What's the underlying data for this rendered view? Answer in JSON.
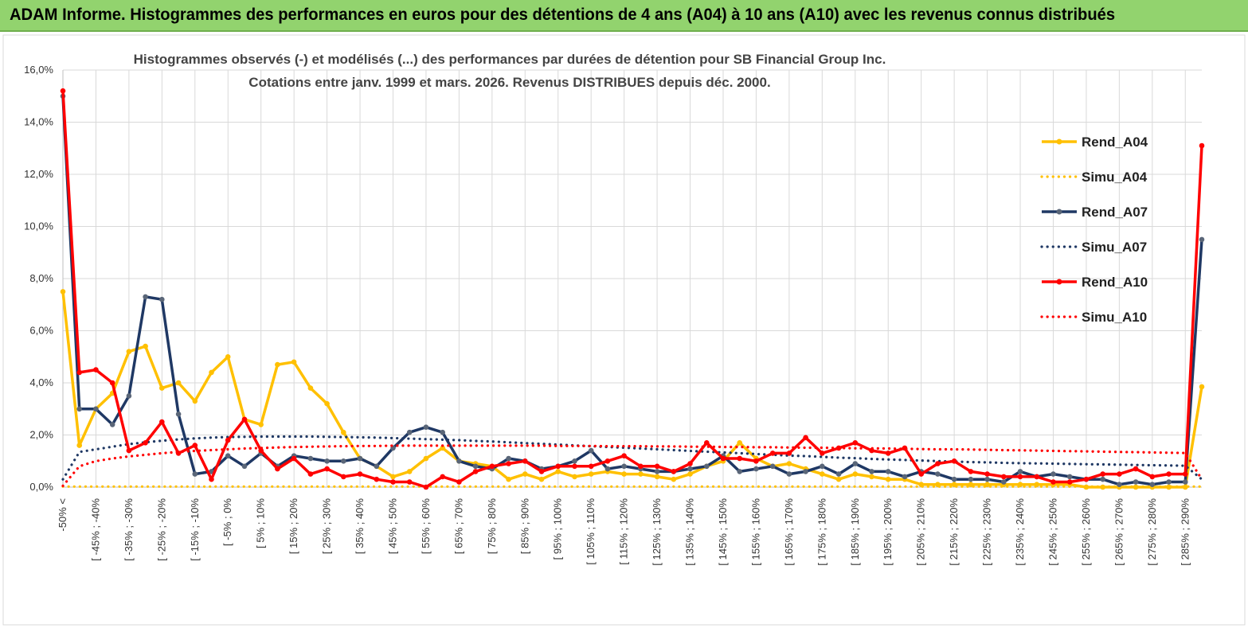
{
  "banner": {
    "title": "ADAM Informe. Histogrammes des performances en euros pour des détentions de 4 ans (A04) à 10 ans (A10) avec les revenus connus distribués"
  },
  "colors": {
    "A04": "#ffc000",
    "A07": "#1f3864",
    "A10": "#ff0000",
    "marker07": "#5a6678",
    "grid": "#d9d9d9",
    "banner": "#92d36e"
  },
  "chart_data": {
    "type": "line",
    "title_lines": [
      "Histogrammes observés (-) et modélisés (...)  des performances par durées de détention pour SB Financial Group Inc.",
      "Cotations entre janv. 1999 et mars. 2026. Revenus DISTRIBUES depuis déc. 2000."
    ],
    "ylim": [
      0,
      16
    ],
    "y_ticks": [
      "0,0%",
      "2,0%",
      "4,0%",
      "6,0%",
      "8,0%",
      "10,0%",
      "12,0%",
      "14,0%",
      "16,0%"
    ],
    "x_tick_labels": [
      "-50% <",
      "[ -45% ; -40%",
      "[ -35% ; -30%",
      "[ -25% ; -20%",
      "[ -15% ; -10%",
      "[ -5% ; 0%",
      "[ 5% ; 10%",
      "[ 15% ; 20%",
      "[ 25% ; 30%",
      "[ 35% ; 40%",
      "[ 45% ; 50%",
      "[ 55% ; 60%",
      "[ 65% ; 70%",
      "[ 75% ; 80%",
      "[ 85% ; 90%",
      "[ 95% ; 100%",
      "[ 105% ; 110%",
      "[ 115% ; 120%",
      "[ 125% ; 130%",
      "[ 135% ; 140%",
      "[ 145% ; 150%",
      "[ 155% ; 160%",
      "[ 165% ; 170%",
      "[ 175% ; 180%",
      "[ 185% ; 190%",
      "[ 195% ; 200%",
      "[ 205% ; 210%",
      "[ 215% ; 220%",
      "[ 225% ; 230%",
      "[ 235% ; 240%",
      "[ 245% ; 250%",
      "[ 255% ; 260%",
      "[ 265% ; 270%",
      "[ 275% ; 280%",
      "[ 285% ; 290%"
    ],
    "x_tick_positions": [
      0,
      2,
      4,
      6,
      8,
      10,
      12,
      14,
      16,
      18,
      20,
      22,
      24,
      26,
      28,
      30,
      32,
      34,
      36,
      38,
      40,
      42,
      44,
      46,
      48,
      50,
      52,
      54,
      56,
      58,
      60,
      62,
      64,
      66,
      68
    ],
    "category_count": 70,
    "series": [
      {
        "name": "Rend_A04",
        "style": "solid",
        "color_key": "A04",
        "values": [
          7.5,
          1.6,
          3.0,
          3.6,
          5.2,
          5.4,
          3.8,
          4.0,
          3.3,
          4.4,
          5.0,
          2.6,
          2.4,
          4.7,
          4.8,
          3.8,
          3.2,
          2.1,
          1.1,
          0.8,
          0.4,
          0.6,
          1.1,
          1.5,
          1.0,
          0.9,
          0.8,
          0.3,
          0.5,
          0.3,
          0.6,
          0.4,
          0.5,
          0.6,
          0.5,
          0.5,
          0.4,
          0.3,
          0.5,
          0.8,
          1.0,
          1.7,
          1.1,
          0.8,
          0.9,
          0.7,
          0.5,
          0.3,
          0.5,
          0.4,
          0.3,
          0.3,
          0.1,
          0.1,
          0.1,
          0.1,
          0.1,
          0.1,
          0.1,
          0.1,
          0.1,
          0.1,
          0.0,
          0.0,
          0.0,
          0.0,
          0.0,
          0.0,
          0.0,
          3.85
        ]
      },
      {
        "name": "Simu_A04",
        "style": "dotted",
        "color_key": "A04",
        "values": [
          0.02,
          0.02,
          0.02,
          0.02,
          0.02,
          0.02,
          0.02,
          0.02,
          0.02,
          0.02,
          0.02,
          0.02,
          0.02,
          0.02,
          0.02,
          0.02,
          0.02,
          0.02,
          0.02,
          0.02,
          0.02,
          0.02,
          0.02,
          0.02,
          0.02,
          0.02,
          0.02,
          0.02,
          0.02,
          0.02,
          0.02,
          0.02,
          0.02,
          0.02,
          0.02,
          0.02,
          0.02,
          0.02,
          0.02,
          0.02,
          0.02,
          0.02,
          0.02,
          0.02,
          0.02,
          0.02,
          0.02,
          0.02,
          0.02,
          0.02,
          0.02,
          0.02,
          0.02,
          0.02,
          0.02,
          0.02,
          0.02,
          0.02,
          0.02,
          0.02,
          0.02,
          0.02,
          0.02,
          0.02,
          0.02,
          0.02,
          0.02,
          0.02,
          0.02,
          0.02
        ]
      },
      {
        "name": "Rend_A07",
        "style": "solid",
        "color_key": "A07",
        "values": [
          15.0,
          3.0,
          3.0,
          2.4,
          3.5,
          7.3,
          7.2,
          2.8,
          0.5,
          0.6,
          1.2,
          0.8,
          1.3,
          0.8,
          1.2,
          1.1,
          1.0,
          1.0,
          1.1,
          0.8,
          1.5,
          2.1,
          2.3,
          2.1,
          1.0,
          0.8,
          0.7,
          1.1,
          1.0,
          0.7,
          0.8,
          1.0,
          1.4,
          0.7,
          0.8,
          0.7,
          0.6,
          0.6,
          0.7,
          0.8,
          1.2,
          0.6,
          0.7,
          0.8,
          0.5,
          0.6,
          0.8,
          0.5,
          0.9,
          0.6,
          0.6,
          0.4,
          0.6,
          0.5,
          0.3,
          0.3,
          0.3,
          0.2,
          0.6,
          0.4,
          0.5,
          0.4,
          0.3,
          0.3,
          0.1,
          0.2,
          0.1,
          0.2,
          0.2,
          9.5
        ]
      },
      {
        "name": "Simu_A07",
        "style": "dotted",
        "color_key": "A07",
        "values": [
          0.3,
          1.35,
          1.45,
          1.55,
          1.65,
          1.72,
          1.78,
          1.83,
          1.87,
          1.9,
          1.92,
          1.93,
          1.94,
          1.94,
          1.94,
          1.94,
          1.93,
          1.92,
          1.91,
          1.9,
          1.88,
          1.86,
          1.84,
          1.82,
          1.8,
          1.77,
          1.75,
          1.72,
          1.69,
          1.66,
          1.63,
          1.6,
          1.57,
          1.54,
          1.51,
          1.48,
          1.45,
          1.42,
          1.39,
          1.36,
          1.33,
          1.3,
          1.27,
          1.24,
          1.21,
          1.19,
          1.16,
          1.13,
          1.11,
          1.08,
          1.06,
          1.04,
          1.02,
          1.0,
          0.98,
          0.96,
          0.95,
          0.93,
          0.92,
          0.91,
          0.9,
          0.89,
          0.88,
          0.87,
          0.86,
          0.85,
          0.84,
          0.83,
          0.82,
          0.3
        ]
      },
      {
        "name": "Rend_A10",
        "style": "solid",
        "color_key": "A10",
        "values": [
          15.2,
          4.4,
          4.5,
          4.0,
          1.4,
          1.7,
          2.5,
          1.3,
          1.6,
          0.3,
          1.8,
          2.6,
          1.4,
          0.7,
          1.1,
          0.5,
          0.7,
          0.4,
          0.5,
          0.3,
          0.2,
          0.2,
          0.0,
          0.4,
          0.2,
          0.6,
          0.8,
          0.9,
          1.0,
          0.6,
          0.8,
          0.8,
          0.8,
          1.0,
          1.2,
          0.8,
          0.8,
          0.6,
          0.9,
          1.7,
          1.1,
          1.1,
          1.0,
          1.3,
          1.3,
          1.9,
          1.3,
          1.5,
          1.7,
          1.4,
          1.3,
          1.5,
          0.5,
          0.9,
          1.0,
          0.6,
          0.5,
          0.4,
          0.4,
          0.4,
          0.2,
          0.2,
          0.3,
          0.5,
          0.5,
          0.7,
          0.4,
          0.5,
          0.5,
          13.1
        ]
      },
      {
        "name": "Simu_A10",
        "style": "dotted",
        "color_key": "A10",
        "values": [
          0.05,
          0.8,
          1.0,
          1.1,
          1.18,
          1.24,
          1.3,
          1.35,
          1.39,
          1.42,
          1.45,
          1.48,
          1.5,
          1.52,
          1.54,
          1.55,
          1.56,
          1.57,
          1.58,
          1.58,
          1.59,
          1.59,
          1.59,
          1.59,
          1.59,
          1.59,
          1.59,
          1.59,
          1.59,
          1.59,
          1.58,
          1.58,
          1.58,
          1.57,
          1.57,
          1.57,
          1.56,
          1.56,
          1.55,
          1.55,
          1.54,
          1.54,
          1.53,
          1.53,
          1.52,
          1.51,
          1.51,
          1.5,
          1.49,
          1.49,
          1.48,
          1.47,
          1.46,
          1.45,
          1.45,
          1.44,
          1.43,
          1.42,
          1.41,
          1.4,
          1.39,
          1.38,
          1.37,
          1.36,
          1.35,
          1.34,
          1.33,
          1.32,
          1.31,
          0.3
        ]
      }
    ],
    "legend_position": "right"
  }
}
